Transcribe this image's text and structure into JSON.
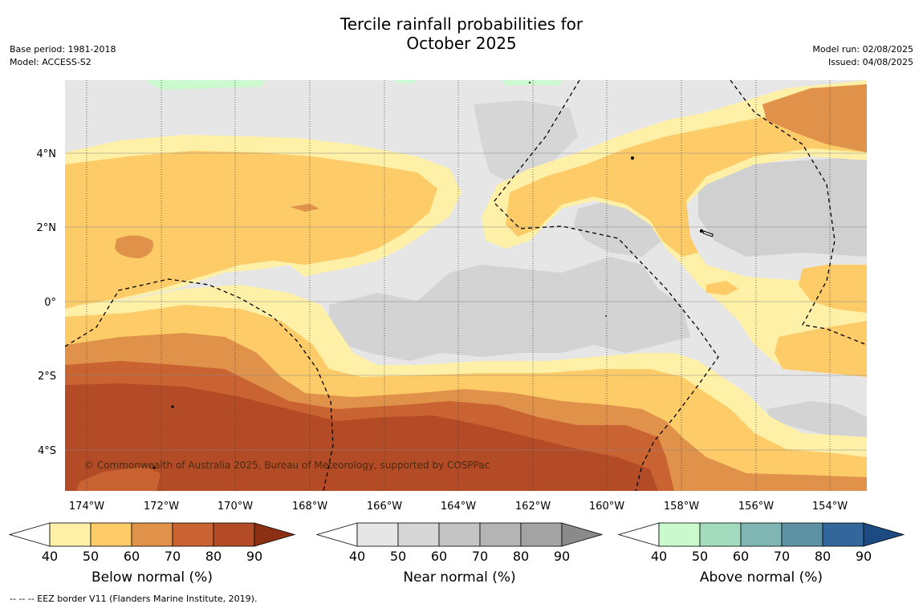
{
  "title_line1": "Tercile rainfall probabilities for",
  "title_line2": "October 2025",
  "base_period": "Base period: 1981-2018",
  "model": "Model: ACCESS-S2",
  "model_run": "Model run: 02/08/2025",
  "issued": "Issued: 04/08/2025",
  "copyright": "© Commonwealth of Australia 2025, Bureau of Meteorology, supported by COSPPac",
  "footer": "--  --  -- EEZ border V11 (Flanders Marine Institute, 2019).",
  "lat_labels": [
    "4°N",
    "2°N",
    "0°",
    "2°S",
    "4°S"
  ],
  "lon_labels": [
    "174°W",
    "172°W",
    "170°W",
    "168°W",
    "166°W",
    "164°W",
    "162°W",
    "160°W",
    "158°W",
    "156°W",
    "154°W"
  ],
  "colorbars": [
    {
      "title": "Below normal (%)",
      "ticks": [
        "40",
        "50",
        "60",
        "70",
        "80",
        "90"
      ],
      "colors": [
        "#fff0a8",
        "#fdcb67",
        "#e0924a",
        "#c96432",
        "#b34c26",
        "#8c3014"
      ]
    },
    {
      "title": "Near normal (%)",
      "ticks": [
        "40",
        "50",
        "60",
        "70",
        "80",
        "90"
      ],
      "colors": [
        "#e6e6e6",
        "#d6d6d6",
        "#c4c4c4",
        "#b4b4b4",
        "#a3a3a3",
        "#8a8a8a"
      ]
    },
    {
      "title": "Above normal (%)",
      "ticks": [
        "40",
        "50",
        "60",
        "70",
        "80",
        "90"
      ],
      "colors": [
        "#c9f9cc",
        "#a3dbbf",
        "#7fb6b3",
        "#5c92a3",
        "#33679c",
        "#1b4b82"
      ]
    }
  ]
}
